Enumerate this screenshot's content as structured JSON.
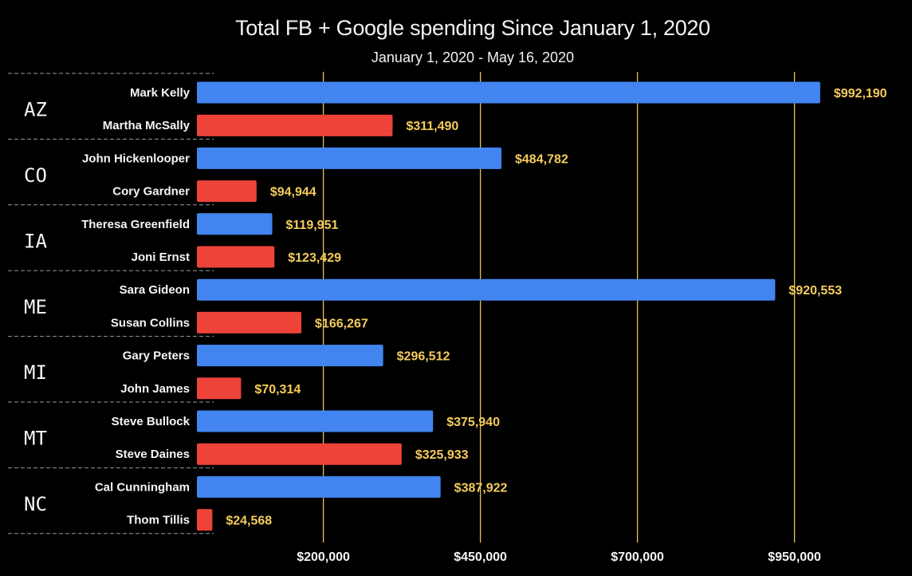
{
  "chart_data": {
    "type": "bar",
    "orientation": "horizontal",
    "title": "Total FB + Google spending Since January 1, 2020",
    "subtitle": "January 1, 2020 - May 16, 2020",
    "xlabel": "",
    "ylabel": "",
    "xlim": [
      0,
      1100000
    ],
    "x_ticks": [
      200000,
      450000,
      700000,
      950000
    ],
    "x_tick_labels": [
      "$200,000",
      "$450,000",
      "$700,000",
      "$950,000"
    ],
    "grid": true,
    "colors": {
      "democrat": "#4285f0",
      "republican": "#ee4339",
      "value_label": "#f5cc5c",
      "gridline": "#e8bf5a",
      "text": "#f5f5f5"
    },
    "groups": [
      {
        "state": "AZ",
        "candidates": [
          {
            "name": "Mark Kelly",
            "party": "democrat",
            "value": 992190,
            "label": "$992,190"
          },
          {
            "name": "Martha McSally",
            "party": "republican",
            "value": 311490,
            "label": "$311,490"
          }
        ]
      },
      {
        "state": "CO",
        "candidates": [
          {
            "name": "John Hickenlooper",
            "party": "democrat",
            "value": 484782,
            "label": "$484,782"
          },
          {
            "name": "Cory Gardner",
            "party": "republican",
            "value": 94944,
            "label": "$94,944"
          }
        ]
      },
      {
        "state": "IA",
        "candidates": [
          {
            "name": "Theresa Greenfield",
            "party": "democrat",
            "value": 119951,
            "label": "$119,951"
          },
          {
            "name": "Joni Ernst",
            "party": "republican",
            "value": 123429,
            "label": "$123,429"
          }
        ]
      },
      {
        "state": "ME",
        "candidates": [
          {
            "name": "Sara Gideon",
            "party": "democrat",
            "value": 920553,
            "label": "$920,553"
          },
          {
            "name": "Susan Collins",
            "party": "republican",
            "value": 166267,
            "label": "$166,267"
          }
        ]
      },
      {
        "state": "MI",
        "candidates": [
          {
            "name": "Gary Peters",
            "party": "democrat",
            "value": 296512,
            "label": "$296,512"
          },
          {
            "name": "John James",
            "party": "republican",
            "value": 70314,
            "label": "$70,314"
          }
        ]
      },
      {
        "state": "MT",
        "candidates": [
          {
            "name": "Steve Bullock",
            "party": "democrat",
            "value": 375940,
            "label": "$375,940"
          },
          {
            "name": "Steve Daines",
            "party": "republican",
            "value": 325933,
            "label": "$325,933"
          }
        ]
      },
      {
        "state": "NC",
        "candidates": [
          {
            "name": "Cal Cunningham",
            "party": "democrat",
            "value": 387922,
            "label": "$387,922"
          },
          {
            "name": "Thom Tillis",
            "party": "republican",
            "value": 24568,
            "label": "$24,568"
          }
        ]
      }
    ]
  }
}
